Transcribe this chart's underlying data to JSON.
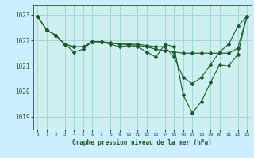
{
  "title": "Graphe pression niveau de la mer (hPa)",
  "bg_color": "#cceeff",
  "plot_bg_color": "#cff0f0",
  "grid_color": "#99cccc",
  "line_color": "#1a5c2a",
  "xlim": [
    -0.5,
    23.5
  ],
  "ylim": [
    1018.5,
    1023.4
  ],
  "yticks": [
    1019,
    1020,
    1021,
    1022,
    1023
  ],
  "xticks": [
    0,
    1,
    2,
    3,
    4,
    5,
    6,
    7,
    8,
    9,
    10,
    11,
    12,
    13,
    14,
    15,
    16,
    17,
    18,
    19,
    20,
    21,
    22,
    23
  ],
  "series": [
    [
      1022.95,
      1022.4,
      1022.2,
      1021.85,
      1021.75,
      1021.75,
      1021.95,
      1021.95,
      1021.9,
      1021.85,
      1021.85,
      1021.8,
      1021.75,
      1021.65,
      1021.6,
      1021.55,
      1021.5,
      1021.5,
      1021.5,
      1021.5,
      1021.5,
      1021.5,
      1021.7,
      1022.95
    ],
    [
      1022.95,
      1022.4,
      1022.2,
      1021.85,
      1021.75,
      1021.75,
      1021.95,
      1021.95,
      1021.9,
      1021.85,
      1021.85,
      1021.85,
      1021.8,
      1021.75,
      1021.75,
      1021.35,
      1020.55,
      1020.3,
      1020.55,
      1021.05,
      1021.55,
      1021.85,
      1022.55,
      1022.95
    ],
    [
      1022.95,
      1022.4,
      1022.2,
      1021.85,
      1021.55,
      1021.65,
      1021.95,
      1021.95,
      1021.85,
      1021.75,
      1021.8,
      1021.75,
      1021.55,
      1021.35,
      1021.85,
      1021.75,
      1019.85,
      1019.15,
      1019.6,
      1020.35,
      1021.05,
      1021.0,
      1021.45,
      1022.95
    ]
  ]
}
